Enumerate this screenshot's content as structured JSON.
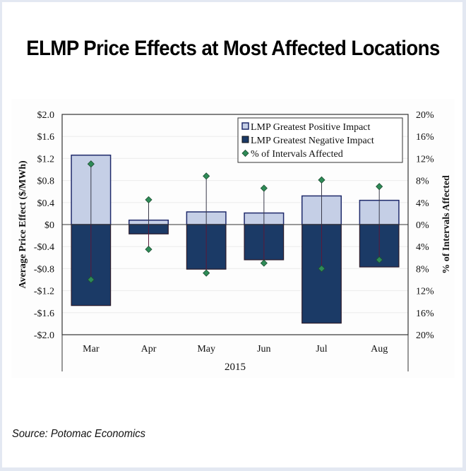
{
  "page": {
    "title": "ELMP Price Effects at Most Affected Locations",
    "source": "Source: Potomac Economics"
  },
  "colors": {
    "positive_bar": "#c5cfe6",
    "positive_bar_border": "#1f2a6b",
    "negative_bar": "#1b3a66",
    "negative_bar_border": "#2a1a2a",
    "marker": "#2e8b57",
    "page_border": "#e3e8f2"
  },
  "chart_data": {
    "type": "bar",
    "title": "",
    "categories": [
      "Mar",
      "Apr",
      "May",
      "Jun",
      "Jul",
      "Aug"
    ],
    "xlabel": "2015",
    "ylabel": "Average Price Effect ($/MWh)",
    "y2label": "% of Intervals Affected",
    "ylim": [
      -2.0,
      2.0
    ],
    "y2lim": [
      -20,
      20
    ],
    "yticks": [
      "$2.0",
      "$1.6",
      "$1.2",
      "$0.8",
      "$0.4",
      "$0",
      "-$0.4",
      "-$0.8",
      "-$1.2",
      "-$1.6",
      "-$2.0"
    ],
    "y2ticks": [
      "20%",
      "16%",
      "12%",
      "8%",
      "4%",
      "0%",
      "4%",
      "8%",
      "12%",
      "16%",
      "20%"
    ],
    "grid": true,
    "legend_position": "top-right",
    "series": [
      {
        "name": "LMP Greatest Positive Impact",
        "kind": "bar",
        "axis": "left",
        "values": [
          1.26,
          0.08,
          0.23,
          0.21,
          0.52,
          0.44
        ]
      },
      {
        "name": "LMP Greatest Negative Impact",
        "kind": "bar",
        "axis": "left",
        "values": [
          -1.47,
          -0.17,
          -0.81,
          -0.64,
          -1.79,
          -0.77
        ]
      },
      {
        "name": "% of Intervals Affected",
        "kind": "marker",
        "axis": "right",
        "positive_values": [
          11.0,
          4.5,
          8.8,
          6.6,
          8.1,
          6.9
        ],
        "negative_values": [
          10.0,
          4.5,
          8.8,
          7.0,
          8.0,
          6.4
        ]
      }
    ]
  }
}
